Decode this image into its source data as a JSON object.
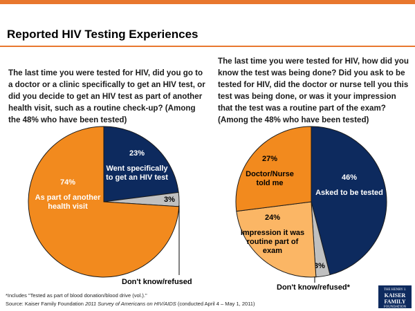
{
  "page": {
    "title": "Reported HIV Testing Experiences",
    "footnote": "*Includes \"Tested as part of blood donation/blood drive (vol.).\"",
    "source_prefix": "Source: Kaiser Family Foundation ",
    "source_title": "2011 Survey of Americans on HIV/AIDS",
    "source_suffix": " (conducted April 4 – May 1, 2011)",
    "logo": {
      "line1": "THE HENRY J.",
      "line2": "KAISER",
      "line3": "FAMILY",
      "line4": "FOUNDATION"
    },
    "colors": {
      "accent": "#e8772e",
      "navy": "#0d2a5e",
      "orange": "#f28a1e",
      "light_orange": "#fbb665",
      "gray": "#c0c0c0"
    }
  },
  "chart_data": [
    {
      "type": "pie",
      "question": "The last time you were tested for HIV, did you go to a doctor or a clinic specifically to get an HIV test, or did you decide to get an HIV test as part of another health visit, such as a routine check-up? (Among the 48% who have been tested)",
      "slices": [
        {
          "value": 23,
          "value_label": "23%",
          "label": "Went specifically to get an HIV test",
          "color": "#0d2a5e",
          "text_color": "#ffffff"
        },
        {
          "value": 3,
          "value_label": "3%",
          "label": "Don't know/refused",
          "color": "#c0c0c0",
          "text_color": "#000000"
        },
        {
          "value": 74,
          "value_label": "74%",
          "label": "As part of another health visit",
          "color": "#f28a1e",
          "text_color": "#ffffff"
        }
      ]
    },
    {
      "type": "pie",
      "question": "The last time you were tested for HIV, how did you know the test was being done? Did you ask to be tested for HIV, did the doctor or nurse tell you this test was being done, or was it your impression that the test was a routine part of the exam? (Among the 48% who have been tested)",
      "slices": [
        {
          "value": 46,
          "value_label": "46%",
          "label": "Asked to be tested",
          "color": "#0d2a5e",
          "text_color": "#ffffff"
        },
        {
          "value": 3,
          "value_label": "3%",
          "label": "Don't know/refused*",
          "color": "#c0c0c0",
          "text_color": "#000000"
        },
        {
          "value": 24,
          "value_label": "24%",
          "label": "Impression it was routine part of exam",
          "color": "#fbb665",
          "text_color": "#000000"
        },
        {
          "value": 27,
          "value_label": "27%",
          "label": "Doctor/Nurse told me",
          "color": "#f28a1e",
          "text_color": "#000000"
        }
      ]
    }
  ]
}
